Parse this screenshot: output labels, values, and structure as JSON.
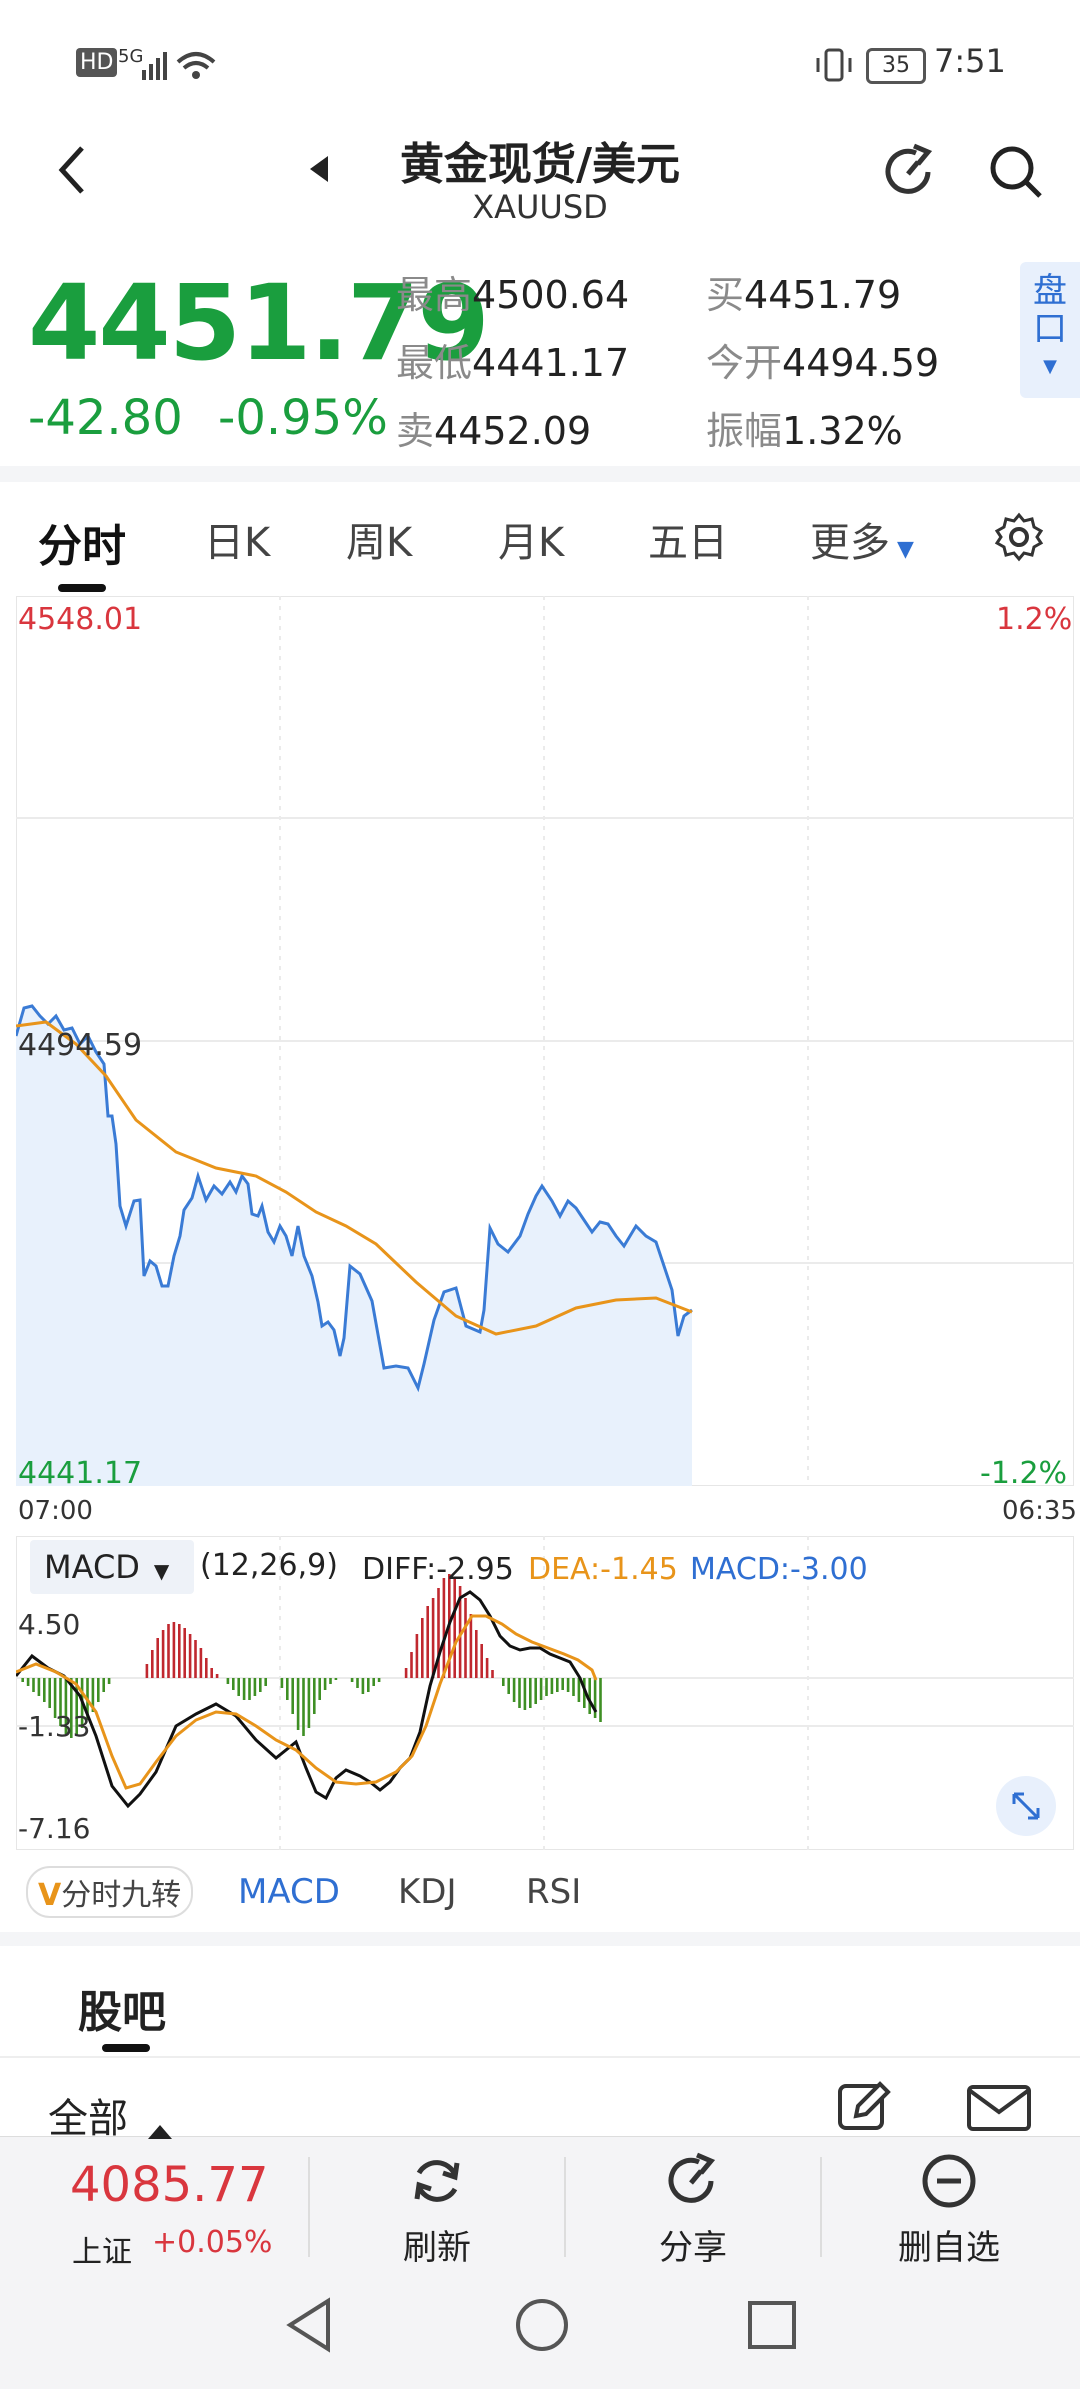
{
  "status_bar": {
    "network": "HD",
    "signal": "5G",
    "battery": "35",
    "time": "7:51"
  },
  "header": {
    "title": "黄金现货/美元",
    "symbol": "XAUUSD"
  },
  "quote": {
    "price": "4451.79",
    "change": "-42.80",
    "change_pct": "-0.95%",
    "fields": [
      {
        "label": "最高",
        "value": "4500.64"
      },
      {
        "label": "最低",
        "value": "4441.17"
      },
      {
        "label": "卖",
        "value": "4452.09"
      },
      {
        "label": "买",
        "value": "4451.79"
      },
      {
        "label": "今开",
        "value": "4494.59"
      },
      {
        "label": "振幅",
        "value": "1.32%"
      }
    ],
    "pankou": "盘口"
  },
  "tabs": [
    "分时",
    "日K",
    "周K",
    "月K",
    "五日",
    "更多"
  ],
  "chart": {
    "high_label": "4548.01",
    "high_pct": "1.2%",
    "low_label": "4441.17",
    "low_pct": "-1.2%",
    "mid_label": "4494.59",
    "time_start": "07:00",
    "time_end": "06:35"
  },
  "macd": {
    "selector": "MACD",
    "params": "(12,26,9)",
    "diff": "DIFF:-2.95",
    "dea": "DEA:-1.45",
    "macd": "MACD:-3.00",
    "y_top": "4.50",
    "y_mid": "-1.33",
    "y_bot": "-7.16"
  },
  "indicator_tabs": {
    "special": "分时九转",
    "items": [
      "MACD",
      "KDJ",
      "RSI"
    ]
  },
  "guba": {
    "title": "股吧",
    "filter": "全部"
  },
  "bottom": {
    "index_value": "4085.77",
    "index_name": "上证",
    "index_change": "+0.05%",
    "refresh": "刷新",
    "share": "分享",
    "remove": "删自选"
  },
  "colors": {
    "up": "#d9363e",
    "down": "#1a9e3e",
    "accent": "#2f6fd2",
    "price_line": "#3a7bd5",
    "avg_line": "#e8941a"
  }
}
